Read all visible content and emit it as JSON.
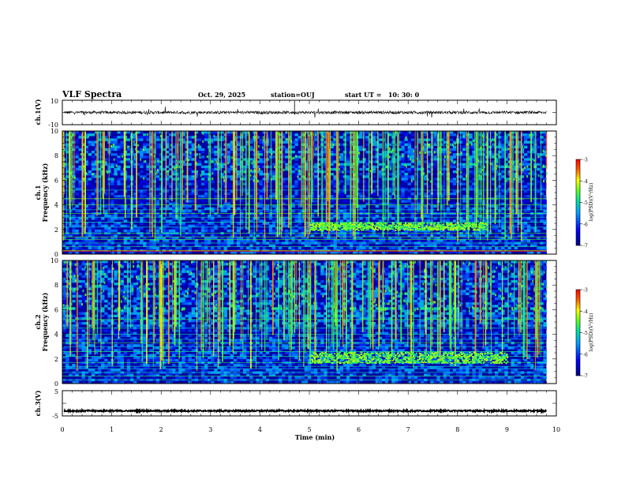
{
  "chart_data": {
    "type": "heatmap",
    "title": "VLF Spectra",
    "date": "Oct. 29, 2025",
    "station": "station=OUJ",
    "start_ut": "start UT =   10: 30: 0",
    "time_axis": {
      "label": "Time (min)",
      "range": [
        0,
        10
      ],
      "ticks": [
        "0",
        "1",
        "2",
        "3",
        "4",
        "5",
        "6",
        "7",
        "8",
        "9",
        "10"
      ]
    },
    "panels": [
      {
        "kind": "waveform",
        "ylabel": "ch.1(V)",
        "ylim": [
          -10,
          10
        ],
        "yticks": [
          "10",
          "-10"
        ],
        "mean_value": 0,
        "amplitude": 1.2,
        "data_end_min": 9.8
      },
      {
        "kind": "spectrogram",
        "ylabel_channel": "ch.1",
        "ylabel": "Frequency (kHz)",
        "ylim": [
          0,
          10
        ],
        "yticks": [
          "0",
          "2",
          "4",
          "6",
          "8",
          "10"
        ],
        "data_end_min": 9.8,
        "noise_band_khz": [
          2.0,
          2.6
        ],
        "noise_band_time_min": [
          5.0,
          8.6
        ]
      },
      {
        "kind": "spectrogram",
        "ylabel_channel": "ch.2",
        "ylabel": "Frequency (kHz)",
        "ylim": [
          0,
          10
        ],
        "yticks": [
          "0",
          "2",
          "4",
          "6",
          "8",
          "10"
        ],
        "data_end_min": 9.8,
        "noise_band_khz": [
          1.7,
          2.6
        ],
        "noise_band_time_min": [
          5.0,
          9.0
        ]
      },
      {
        "kind": "waveform",
        "ylabel": "ch.3(V)",
        "ylim": [
          -5,
          5
        ],
        "yticks": [
          "5",
          "-5"
        ],
        "mean_value": -3,
        "amplitude": 0.3,
        "data_end_min": 9.8
      }
    ],
    "colorbar": {
      "label": "log(PSD)(V²/Hz)",
      "range": [
        -7,
        -3
      ],
      "ticks": [
        "-3",
        "-4",
        "-5",
        "-6",
        "-7"
      ]
    },
    "colors": {
      "low": "#00007a",
      "mid": "#0090ff",
      "high": "#30e070",
      "peak": "#ff2000"
    }
  }
}
